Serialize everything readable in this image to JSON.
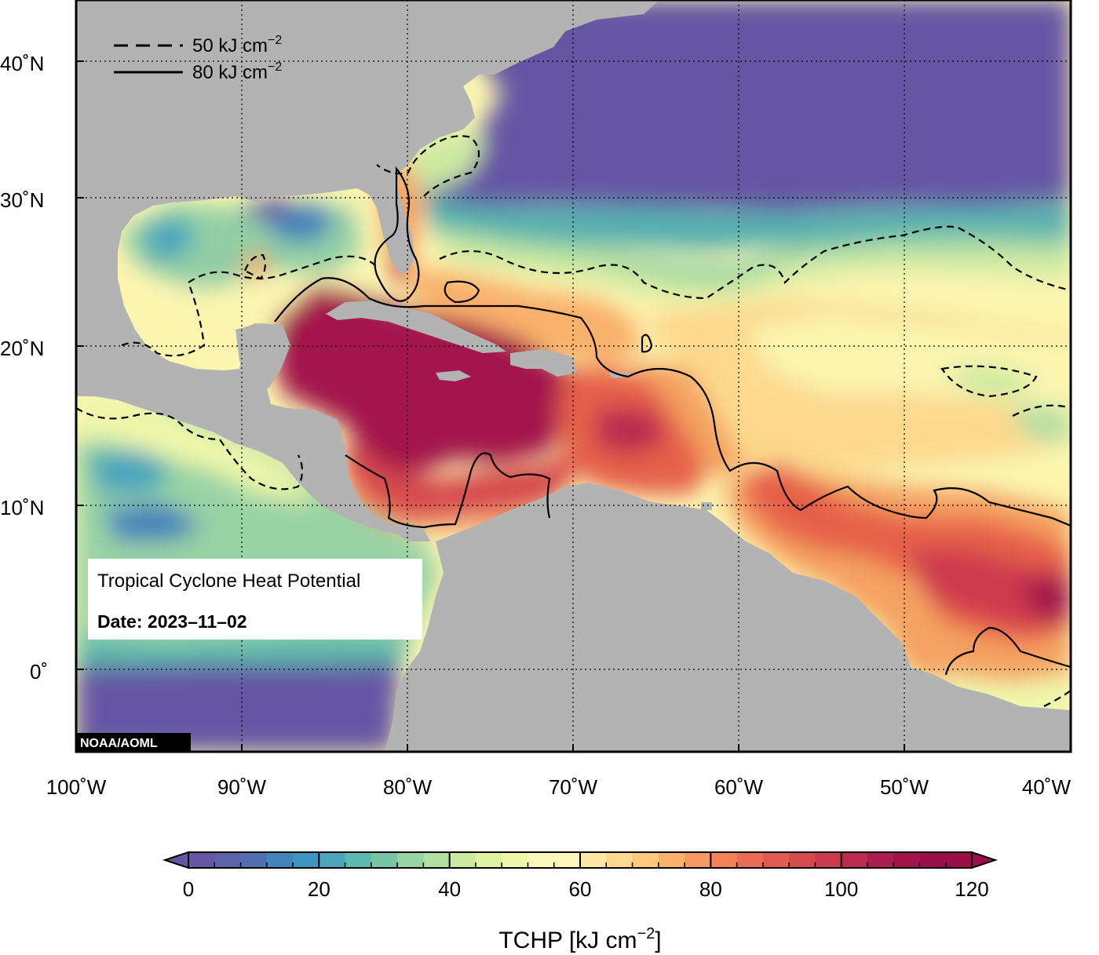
{
  "map": {
    "title": "Tropical Cyclone Heat Potential",
    "date_label": "Date: 2023–11–02",
    "credit": "NOAA/AOML",
    "lon_ticks": [
      "100˚W",
      "90˚W",
      "80˚W",
      "70˚W",
      "60˚W",
      "50˚W",
      "40˚W"
    ],
    "lat_ticks": [
      "40˚N",
      "30˚N",
      "20˚N",
      "10˚N",
      "0˚"
    ],
    "legend": [
      {
        "style": "dashed",
        "value": "50 kJ cm",
        "exp": "−2"
      },
      {
        "style": "solid",
        "value": "80 kJ cm",
        "exp": "−2"
      }
    ],
    "colors": {
      "land": "#b3b3b3",
      "cold": "#6556a4",
      "cyan": "#54aeb0",
      "green": "#92cfa5",
      "lightgreen": "#cdeaa0",
      "yellow": "#fbf5b0",
      "lightorange": "#f9cf86",
      "orange": "#f5a262",
      "redorange": "#e6604a",
      "red": "#cd3b4e",
      "crimson": "#a3134b"
    }
  },
  "colorbar": {
    "title": "TCHP [kJ cm",
    "title_exp": "−2",
    "title_end": "]",
    "tick_labels": [
      "0",
      "20",
      "40",
      "60",
      "80",
      "100",
      "120"
    ],
    "min": 0,
    "max": 120,
    "step": 4,
    "colors": [
      "#6556a4",
      "#5d62aa",
      "#506fb0",
      "#4483bb",
      "#3e96c0",
      "#4aa6bb",
      "#5db8ad",
      "#78c6a6",
      "#98d3a4",
      "#b4dfa3",
      "#ccea9f",
      "#dff2a3",
      "#eef7ab",
      "#f8f9b6",
      "#fdf7bc",
      "#fde9a3",
      "#fcd98e",
      "#fbc87c",
      "#f9b16c",
      "#f59a60",
      "#f1825a",
      "#e96c53",
      "#df5a4f",
      "#d54a4d",
      "#c93a4e",
      "#bb2a4f",
      "#ad1c4f",
      "#a3134b",
      "#9b0f48",
      "#9b0f48"
    ]
  }
}
